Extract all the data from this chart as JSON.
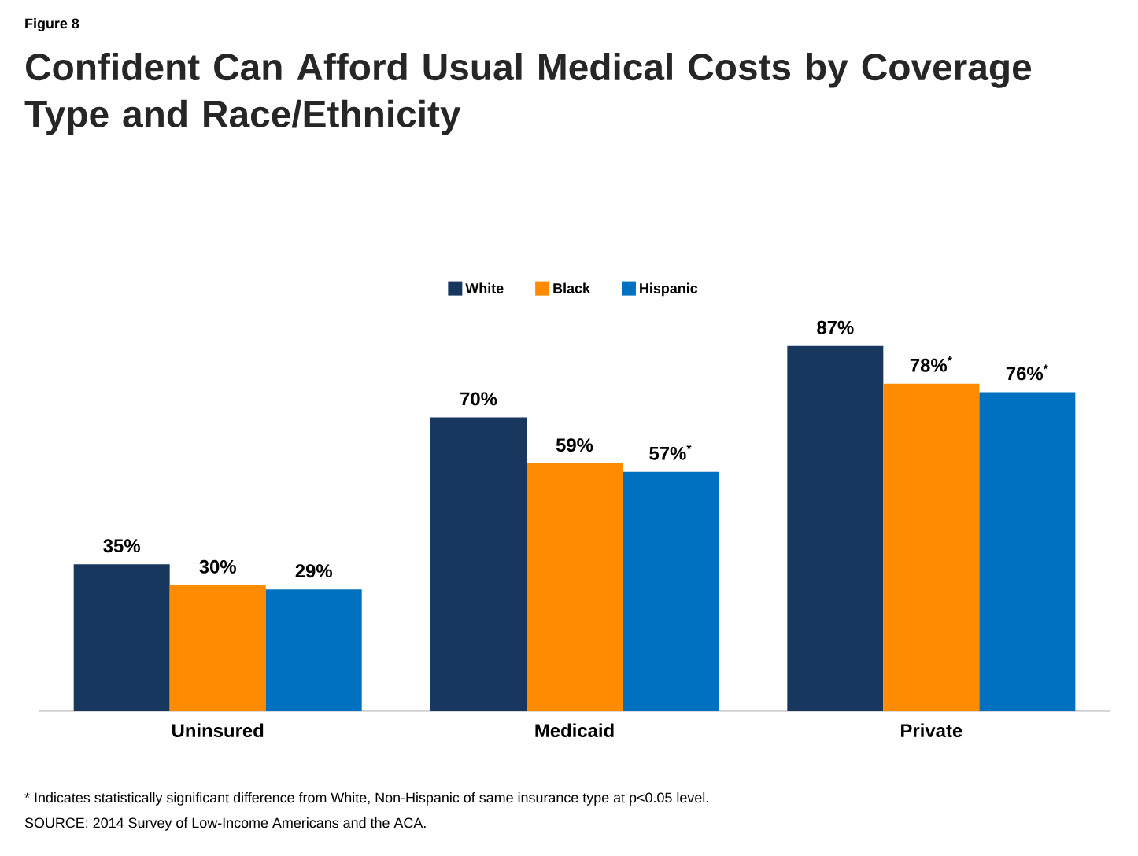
{
  "chart_data": {
    "type": "bar",
    "title": "Confident Can Afford Usual Medical Costs by Coverage Type and Race/Ethnicity",
    "categories": [
      "Uninsured",
      "Medicaid",
      "Private"
    ],
    "series": [
      {
        "name": "White",
        "color": "#17375e",
        "values": [
          35,
          70,
          87
        ],
        "value_labels": [
          "35%",
          "70%",
          "87%"
        ]
      },
      {
        "name": "Black",
        "color": "#ff8c00",
        "values": [
          30,
          59,
          78
        ],
        "value_labels": [
          "30%",
          "59%",
          "78%$^{*}$"
        ]
      },
      {
        "name": "Hispanic",
        "color": "#0070c0",
        "values": [
          29,
          57,
          76
        ],
        "value_labels": [
          "29%",
          "57%$^{*}$",
          "76%$^{*}$"
        ]
      }
    ],
    "legend": "top",
    "annotations": [
      "Figure 8",
      "* Indicates statistically significant difference from White, Non-Hispanic of same insurance type at p<0.05 level.",
      "SOURCE: 2014 Survey of Low-Income Americans and the ACA."
    ]
  }
}
